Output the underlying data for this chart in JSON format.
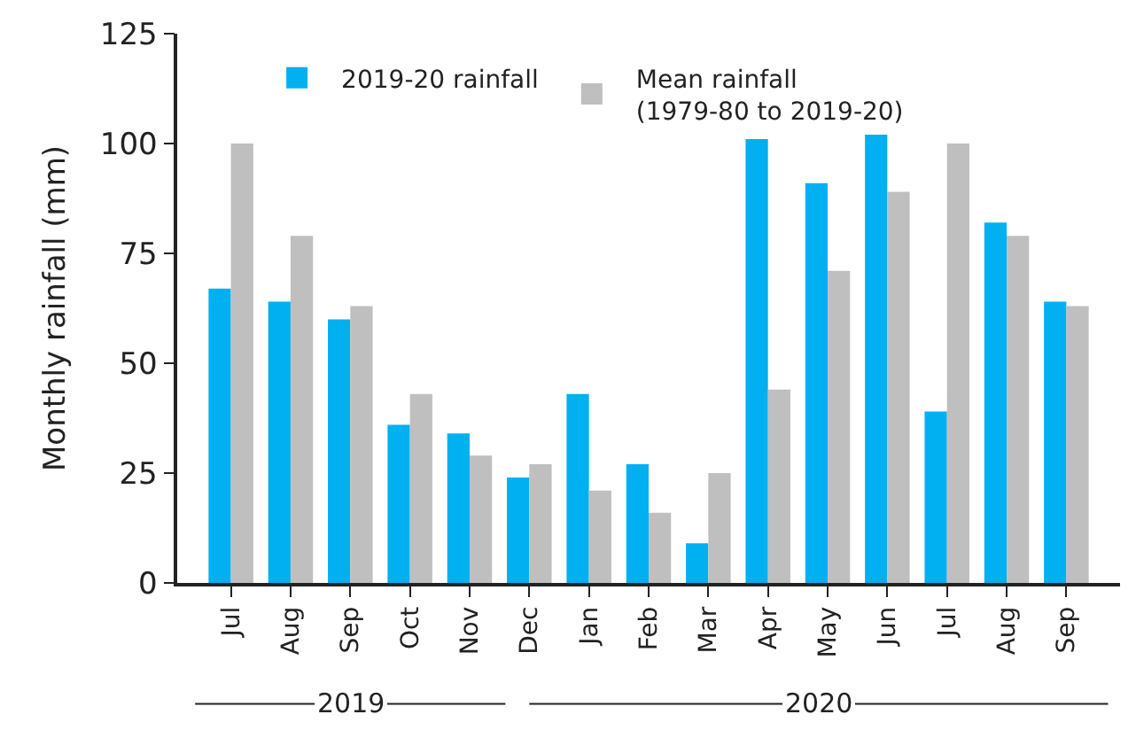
{
  "chart_data": {
    "type": "bar",
    "ylabel": "Monthly rainfall (mm)",
    "categories": [
      "Jul",
      "Aug",
      "Sep",
      "Oct",
      "Nov",
      "Dec",
      "Jan",
      "Feb",
      "Mar",
      "Apr",
      "May",
      "Jun",
      "Jul",
      "Aug",
      "Sep"
    ],
    "series": [
      {
        "name": "2019-20 rainfall",
        "color": "#00b0f0",
        "values": [
          67,
          64,
          60,
          36,
          34,
          24,
          43,
          27,
          9,
          101,
          91,
          102,
          39,
          82,
          64
        ]
      },
      {
        "name": "Mean rainfall\n(1979-80 to 2019-20)",
        "color": "#bfbfbf",
        "values": [
          100,
          79,
          63,
          43,
          29,
          27,
          21,
          16,
          25,
          44,
          71,
          89,
          100,
          79,
          63
        ]
      }
    ],
    "ylim": [
      0,
      125
    ],
    "yticks": [
      0,
      25,
      50,
      75,
      100,
      125
    ],
    "annotations": [
      "2019",
      "2020"
    ],
    "legend": "top"
  }
}
